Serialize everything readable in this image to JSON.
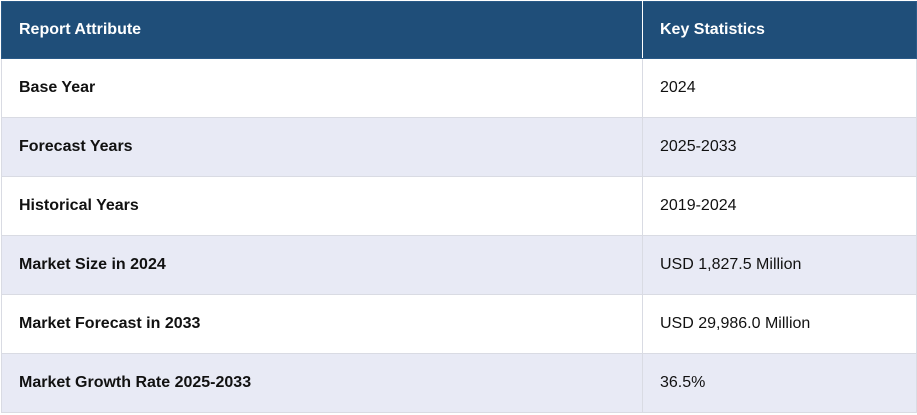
{
  "table": {
    "headers": {
      "attribute": "Report Attribute",
      "statistics": "Key Statistics"
    },
    "rows": [
      {
        "attribute": "Base Year",
        "value": "2024"
      },
      {
        "attribute": "Forecast Years",
        "value": "2025-2033"
      },
      {
        "attribute": "Historical Years",
        "value": "2019-2024"
      },
      {
        "attribute": "Market Size in 2024",
        "value": "USD 1,827.5 Million"
      },
      {
        "attribute": "Market Forecast in 2033",
        "value": "USD 29,986.0 Million"
      },
      {
        "attribute": "Market Growth Rate 2025-2033",
        "value": "36.5%"
      }
    ]
  },
  "colors": {
    "header_bg": "#1f4e79",
    "stripe_bg": "#e8eaf5"
  }
}
